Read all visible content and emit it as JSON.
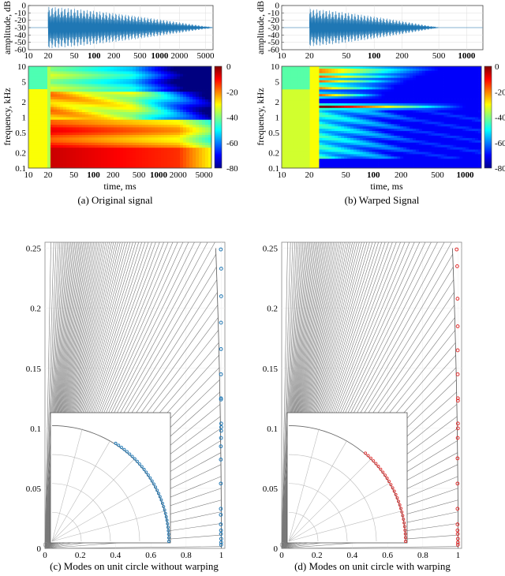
{
  "panels": {
    "a": {
      "caption": "(a) Original signal",
      "wave_ylabel": "amplitude, dB",
      "wave_yticks": [
        "0",
        "-10",
        "-20",
        "-30",
        "-40",
        "-50",
        "-60"
      ],
      "wave_xticks": [
        "10",
        "20",
        "50",
        "100",
        "200",
        "500",
        "1000",
        "2000",
        "5000"
      ],
      "spec_ylabel": "frequency, kHz",
      "spec_yticks": [
        "10",
        "5",
        "2",
        "1",
        "0.5",
        "0.2",
        "0.1"
      ],
      "spec_xticks": [
        "10",
        "20",
        "50",
        "100",
        "200",
        "500",
        "1000",
        "2000",
        "5000"
      ],
      "spec_xlabel": "time, ms",
      "cbar_ticks": [
        "0",
        "-20",
        "-40",
        "-60",
        "-80"
      ]
    },
    "b": {
      "caption": "(b) Warped Signal",
      "wave_ylabel": "amplitude, dB",
      "wave_yticks": [
        "0",
        "-10",
        "-20",
        "-30",
        "-40",
        "-50",
        "-60"
      ],
      "wave_xticks": [
        "10",
        "20",
        "50",
        "100",
        "200",
        "500",
        "1000"
      ],
      "spec_ylabel": "frequency, kHz",
      "spec_yticks": [
        "10",
        "5",
        "2",
        "1",
        "0.5",
        "0.2",
        "0.1"
      ],
      "spec_xticks": [
        "10",
        "20",
        "50",
        "100",
        "200",
        "500",
        "1000"
      ],
      "spec_xlabel": "time, ms",
      "cbar_ticks": [
        "0",
        "-20",
        "-40",
        "-60",
        "-80"
      ]
    },
    "c": {
      "caption": "(c) Modes on unit circle without warping",
      "yticks": [
        "0.25",
        "0.2",
        "0.15",
        "0.1",
        "0.05",
        "0"
      ],
      "xticks": [
        "0",
        "0.2",
        "0.4",
        "0.6",
        "0.8",
        "1"
      ],
      "marker_color": "#1f77b4"
    },
    "d": {
      "caption": "(d) Modes on unit circle with warping",
      "yticks": [
        "0.25",
        "0.2",
        "0.15",
        "0.1",
        "0.05",
        "0"
      ],
      "xticks": [
        "0",
        "0.2",
        "0.4",
        "0.6",
        "0.8",
        "1"
      ],
      "marker_color": "#e03030"
    }
  },
  "chart_data": [
    {
      "type": "line",
      "panel": "a",
      "ylabel": "amplitude, dB",
      "x_scale": "log",
      "x_range": [
        10,
        6500
      ],
      "y_range": [
        -60,
        0
      ]
    },
    {
      "type": "heatmap",
      "panel": "a",
      "ylabel": "frequency, kHz",
      "xlabel": "time, ms",
      "x_scale": "log",
      "y_scale": "log",
      "x_range": [
        10,
        6500
      ],
      "y_range": [
        0.1,
        10
      ],
      "colorbar_range": [
        -80,
        0
      ]
    },
    {
      "type": "line",
      "panel": "b",
      "ylabel": "amplitude, dB",
      "x_scale": "log",
      "x_range": [
        10,
        1500
      ],
      "y_range": [
        -60,
        0
      ]
    },
    {
      "type": "heatmap",
      "panel": "b",
      "ylabel": "frequency, kHz",
      "xlabel": "time, ms",
      "x_scale": "log",
      "y_scale": "log",
      "x_range": [
        10,
        1500
      ],
      "y_range": [
        0.1,
        10
      ],
      "colorbar_range": [
        -80,
        0
      ]
    },
    {
      "type": "scatter",
      "panel": "c",
      "x_range": [
        0,
        1.02
      ],
      "y_range": [
        0,
        0.255
      ],
      "series": [
        {
          "x": [
            0.997,
            0.999,
            0.999,
            0.998,
            0.998,
            0.998,
            0.998,
            0.998,
            0.999,
            0.999,
            0.999,
            0.998,
            0.997,
            0.997,
            0.997,
            0.997,
            0.997,
            0.997,
            0.998,
            0.998,
            0.999,
            0.999,
            0.999
          ],
          "y": [
            0.249,
            0.233,
            0.21,
            0.188,
            0.166,
            0.145,
            0.125,
            0.124,
            0.104,
            0.101,
            0.098,
            0.092,
            0.085,
            0.074,
            0.054,
            0.033,
            0.028,
            0.02,
            0.015,
            0.012,
            0.008,
            0.005,
            0.003
          ]
        }
      ]
    },
    {
      "type": "scatter",
      "panel": "d",
      "x_range": [
        0,
        1.02
      ],
      "y_range": [
        0,
        0.255
      ],
      "series": [
        {
          "x": [
            0.992,
            0.995,
            0.997,
            0.998,
            0.998,
            0.998,
            0.999,
            0.999,
            0.999,
            0.999,
            0.998,
            0.997,
            0.997,
            0.997,
            0.997,
            0.997,
            0.998,
            0.999,
            0.999,
            0.999
          ],
          "y": [
            0.249,
            0.235,
            0.208,
            0.185,
            0.165,
            0.145,
            0.125,
            0.123,
            0.104,
            0.1,
            0.092,
            0.075,
            0.054,
            0.033,
            0.02,
            0.015,
            0.012,
            0.008,
            0.005,
            0.003
          ]
        }
      ]
    }
  ]
}
